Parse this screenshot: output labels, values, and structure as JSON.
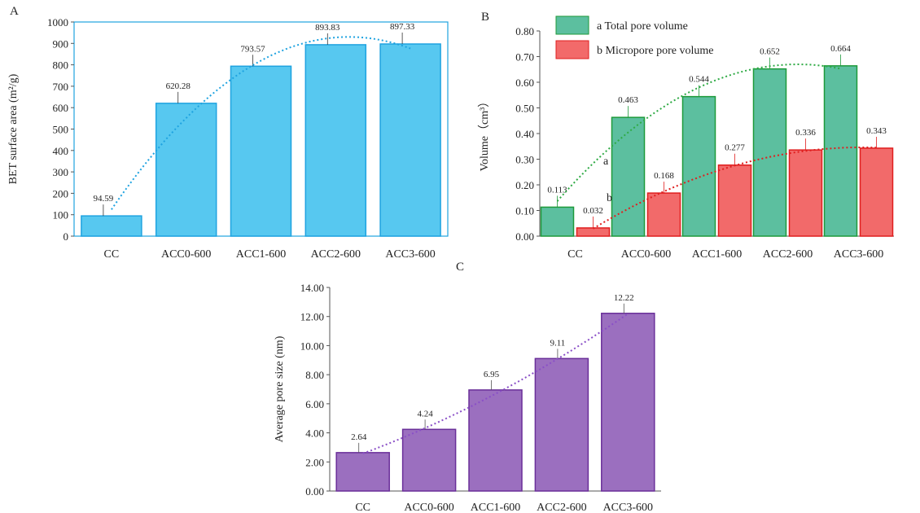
{
  "colors": {
    "a_fill": "#57c8f0",
    "a_stroke": "#1fa3e0",
    "a_trend": "#1fa3e0",
    "b_fill_total": "#5cbf9f",
    "b_stroke_total": "#1e9a3a",
    "b_fill_micro": "#f26a6a",
    "b_stroke_micro": "#e01e1e",
    "b_trend_total": "#2eaa44",
    "b_trend_micro": "#e01e1e",
    "c_fill": "#9b6fbf",
    "c_stroke": "#6a2f99",
    "c_trend": "#8a4fc7",
    "axis": "#555555"
  },
  "chart_data": [
    {
      "panel": "A",
      "type": "bar",
      "categories": [
        "CC",
        "ACC0-600",
        "ACC1-600",
        "ACC2-600",
        "ACC3-600"
      ],
      "values": [
        94.59,
        620.28,
        793.57,
        893.83,
        897.33
      ],
      "data_labels": [
        "94.59",
        "620.28",
        "793.57",
        "893.83",
        "897.33"
      ],
      "ylabel": "BET surface area (m²/g)",
      "ylim": [
        0,
        1000
      ],
      "yticks": [
        "0",
        "100",
        "200",
        "300",
        "400",
        "500",
        "600",
        "700",
        "800",
        "900",
        "1000"
      ],
      "trendline": "dotted polynomial",
      "grid": false
    },
    {
      "panel": "B",
      "type": "bar",
      "categories": [
        "CC",
        "ACC0-600",
        "ACC1-600",
        "ACC2-600",
        "ACC3-600"
      ],
      "series": [
        {
          "name": "Total pore volume",
          "key": "a",
          "values": [
            0.113,
            0.463,
            0.544,
            0.652,
            0.664
          ],
          "data_labels": [
            "0.113",
            "0.463",
            "0.544",
            "0.652",
            "0.664"
          ]
        },
        {
          "name": "Micropore pore volume",
          "key": "b",
          "values": [
            0.032,
            0.168,
            0.277,
            0.336,
            0.343
          ],
          "data_labels": [
            "0.032",
            "0.168",
            "0.277",
            "0.336",
            "0.343"
          ]
        }
      ],
      "ylabel": "Volume（cm³）",
      "ylim": [
        0,
        0.8
      ],
      "yticks": [
        "0.00",
        "0.10",
        "0.20",
        "0.30",
        "0.40",
        "0.50",
        "0.60",
        "0.70",
        "0.80"
      ],
      "legend_position": "top-left",
      "trendline": "dotted polynomial per series",
      "grid": false
    },
    {
      "panel": "C",
      "type": "bar",
      "categories": [
        "CC",
        "ACC0-600",
        "ACC1-600",
        "ACC2-600",
        "ACC3-600"
      ],
      "values": [
        2.64,
        4.24,
        6.95,
        9.11,
        12.22
      ],
      "data_labels": [
        "2.64",
        "4.24",
        "6.95",
        "9.11",
        "12.22"
      ],
      "ylabel": "Average pore size (nm)",
      "ylim": [
        0,
        14
      ],
      "yticks": [
        "0.00",
        "2.00",
        "4.00",
        "6.00",
        "8.00",
        "10.00",
        "12.00",
        "14.00"
      ],
      "trendline": "dotted polynomial",
      "grid": false
    }
  ]
}
